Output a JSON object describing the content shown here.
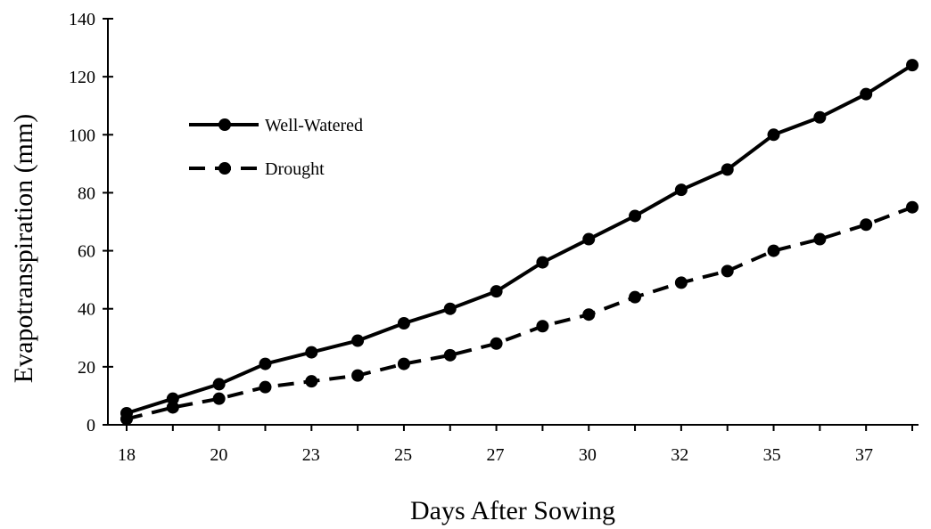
{
  "chart_data": {
    "type": "line",
    "title": "",
    "xlabel": "Days After Sowing",
    "ylabel": "Evapotranspiration  (mm)",
    "ylim": [
      0,
      140
    ],
    "yticks": [
      0,
      20,
      40,
      60,
      80,
      100,
      120,
      140
    ],
    "x_tick_labels": [
      "18",
      "20",
      "23",
      "25",
      "27",
      "30",
      "32",
      "35",
      "37"
    ],
    "grid": false,
    "legend_position": "upper-left",
    "series": [
      {
        "name": "Well-Watered",
        "line_style": "solid",
        "color": "#000000",
        "values": [
          4,
          9,
          14,
          21,
          25,
          29,
          35,
          40,
          46,
          56,
          64,
          72,
          81,
          88,
          100,
          106,
          114,
          124
        ]
      },
      {
        "name": "Drought",
        "line_style": "dashed",
        "color": "#000000",
        "values": [
          2,
          6,
          9,
          13,
          15,
          17,
          21,
          24,
          28,
          34,
          38,
          44,
          49,
          53,
          60,
          64,
          69,
          75
        ]
      }
    ]
  }
}
